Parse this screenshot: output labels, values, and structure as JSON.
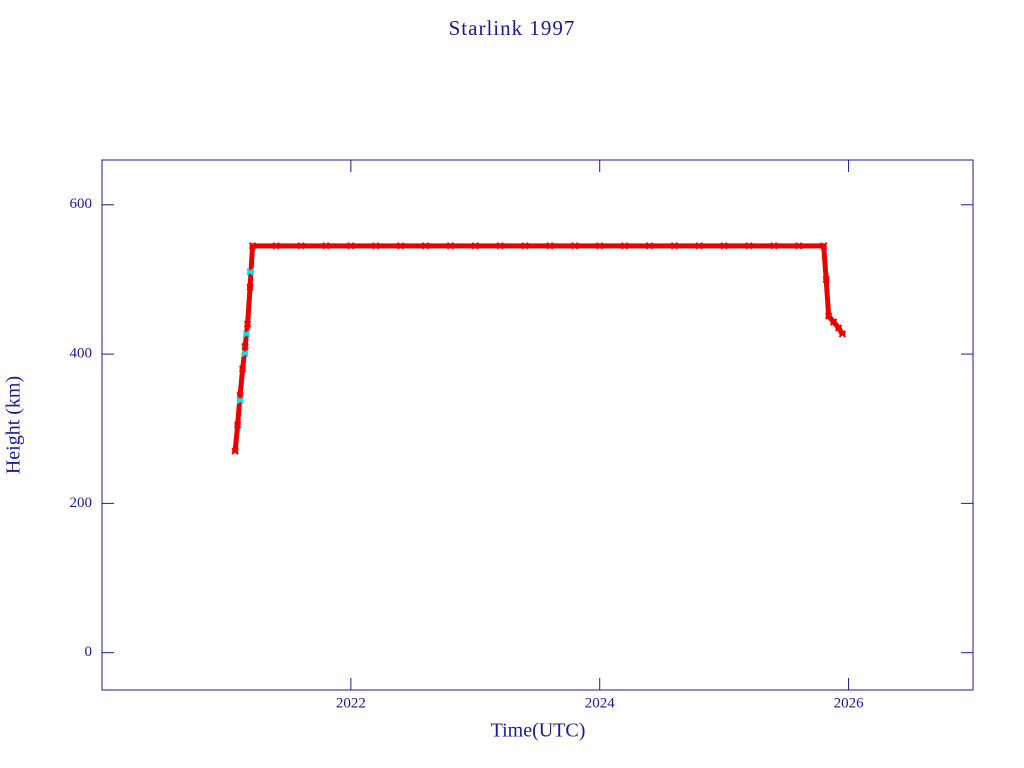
{
  "chart_data": {
    "type": "scatter",
    "title": "Starlink 1997",
    "x_label": "Time(UTC)",
    "y_label": "Height (km)",
    "xlim": [
      2020,
      2027
    ],
    "ylim": [
      -50,
      660
    ],
    "xticks": [
      2022,
      2024,
      2026
    ],
    "yticks": [
      0,
      200,
      400,
      600
    ],
    "series": [
      {
        "color": "#ee0000",
        "x": [
          2021.07,
          2021.09,
          2021.11,
          2021.13,
          2021.15,
          2021.17,
          2021.19,
          2021.21,
          2021.4,
          2021.6,
          2021.8,
          2022.0,
          2022.2,
          2022.4,
          2022.6,
          2022.8,
          2023.0,
          2023.2,
          2023.4,
          2023.6,
          2023.8,
          2024.0,
          2024.2,
          2024.4,
          2024.6,
          2024.8,
          2025.0,
          2025.2,
          2025.4,
          2025.6,
          2025.8,
          2025.82,
          2025.84,
          2025.88,
          2025.92,
          2025.95
        ],
        "values": [
          270,
          305,
          345,
          380,
          410,
          440,
          490,
          545,
          545,
          545,
          545,
          545,
          545,
          545,
          545,
          545,
          545,
          545,
          545,
          545,
          545,
          545,
          545,
          545,
          545,
          545,
          545,
          545,
          545,
          545,
          545,
          500,
          451,
          443,
          435,
          427
        ]
      },
      {
        "color": "#00e5e5",
        "x": [
          2021.11,
          2021.15,
          2021.16,
          2021.19
        ],
        "values": [
          338,
          401,
          427,
          510
        ]
      }
    ]
  }
}
